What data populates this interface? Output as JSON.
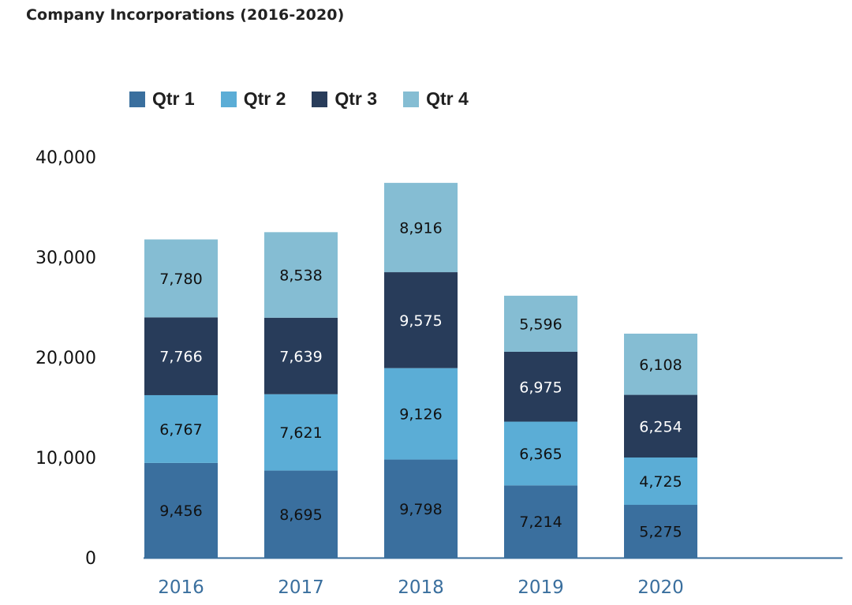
{
  "chart_data": {
    "type": "bar",
    "stacked": true,
    "title": "Company Incorporations (2016-2020)",
    "xlabel": "",
    "ylabel": "",
    "categories": [
      "2016",
      "2017",
      "2018",
      "2019",
      "2020"
    ],
    "series": [
      {
        "name": "Qtr 1",
        "color": "#3a6f9e",
        "label_color": "#111111",
        "values": [
          9456,
          8695,
          9798,
          7214,
          5275
        ],
        "labels": [
          "9,456",
          "8,695",
          "9,798",
          "7,214",
          "5,275"
        ]
      },
      {
        "name": "Qtr 2",
        "color": "#5badd6",
        "label_color": "#111111",
        "values": [
          6767,
          7621,
          9126,
          6365,
          4725
        ],
        "labels": [
          "6,767",
          "7,621",
          "9,126",
          "6,365",
          "4,725"
        ]
      },
      {
        "name": "Qtr 3",
        "color": "#283c5a",
        "label_color": "#ffffff",
        "values": [
          7766,
          7639,
          9575,
          6975,
          6254
        ],
        "labels": [
          "7,766",
          "7,639",
          "9,575",
          "6,975",
          "6,254"
        ]
      },
      {
        "name": "Qtr 4",
        "color": "#85bdd3",
        "label_color": "#111111",
        "values": [
          7780,
          8538,
          8916,
          5596,
          6108
        ],
        "labels": [
          "7,780",
          "8,538",
          "8,916",
          "5,596",
          "6,108"
        ]
      }
    ],
    "ylim": [
      0,
      40000
    ],
    "yticks": [
      0,
      10000,
      20000,
      30000,
      40000
    ],
    "ytick_labels": [
      "0",
      "10,000",
      "20,000",
      "30,000",
      "40,000"
    ],
    "grid": false,
    "legend_position": "top-left",
    "axis_color": "#3a6f9e",
    "xtick_color": "#3a6f9e"
  }
}
